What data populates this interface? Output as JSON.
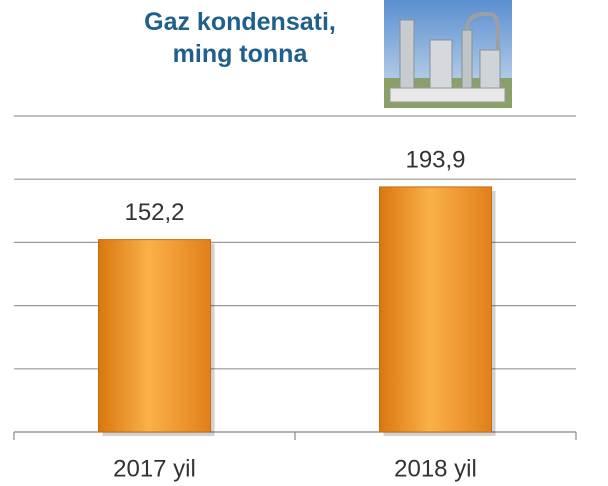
{
  "chart_data": {
    "type": "bar",
    "title": "Gaz kondensati,\nming tonna",
    "categories": [
      "2017 yil",
      "2018 yil"
    ],
    "values": [
      152.2,
      193.9
    ],
    "value_labels": [
      "152,2",
      "193,9"
    ],
    "color": "#f7a030",
    "ylim": [
      0,
      250
    ],
    "yticks": [
      0,
      50,
      100,
      150,
      200,
      250
    ],
    "grid": true
  }
}
